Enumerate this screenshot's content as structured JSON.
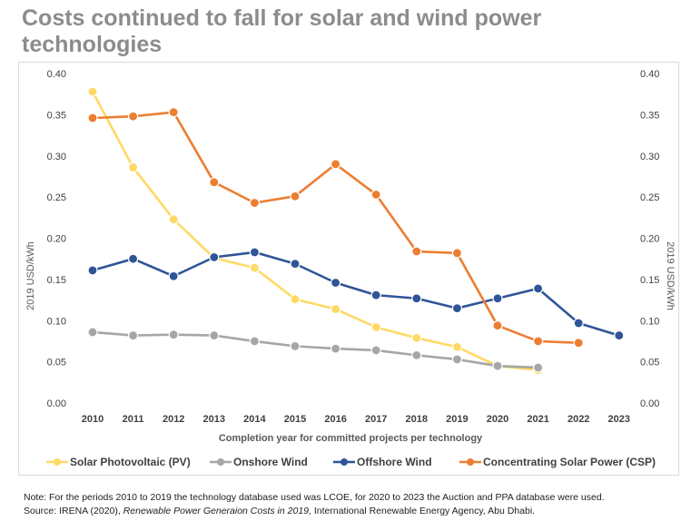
{
  "title": "Costs continued to fall for solar and wind power technologies",
  "note": {
    "line1": "Note: For the periods 2010 to 2019 the technology database used was LCOE, for 2020 to 2023 the Auction and PPA database were used.",
    "source_prefix": "Source: IRENA (2020), ",
    "source_title": "Renewable Power Generaion Costs in 2019,",
    "source_suffix": " International Renewable Energy Agency, Abu Dhabi."
  },
  "chart_data": {
    "type": "line",
    "title": "Costs continued to fall for solar and wind power technologies",
    "xlabel": "Completion year for committed projects per technology",
    "ylabel": "2019 USD/kWh",
    "ylabel_right": "2019 USD/kWh",
    "ylim": [
      0,
      0.4
    ],
    "yticks": [
      "0.00",
      "0.05",
      "0.10",
      "0.15",
      "0.20",
      "0.25",
      "0.30",
      "0.35",
      "0.40"
    ],
    "x": [
      "2010",
      "2011",
      "2012",
      "2013",
      "2014",
      "2015",
      "2016",
      "2017",
      "2018",
      "2019",
      "2020",
      "2021",
      "2022",
      "2023"
    ],
    "grid": false,
    "legend_position": "bottom",
    "series": [
      {
        "name": "Solar Photovoltaic (PV)",
        "color": "#ffd966",
        "values": [
          0.378,
          0.286,
          0.223,
          0.176,
          0.164,
          0.126,
          0.114,
          0.092,
          0.079,
          0.068,
          0.045,
          0.04,
          null,
          null
        ]
      },
      {
        "name": "Onshore Wind",
        "color": "#a6a6a6",
        "values": [
          0.086,
          0.082,
          0.083,
          0.082,
          0.075,
          0.069,
          0.066,
          0.064,
          0.058,
          0.053,
          0.045,
          0.043,
          null,
          null
        ]
      },
      {
        "name": "Offshore Wind",
        "color": "#2f5597",
        "values": [
          0.161,
          0.175,
          0.154,
          0.177,
          0.183,
          0.169,
          0.146,
          0.131,
          0.127,
          0.115,
          0.127,
          0.139,
          0.097,
          0.082
        ]
      },
      {
        "name": "Concentrating Solar Power (CSP)",
        "color": "#ed7d31",
        "values": [
          0.346,
          0.348,
          0.353,
          0.268,
          0.243,
          0.251,
          0.29,
          0.253,
          0.184,
          0.182,
          0.094,
          0.075,
          0.073,
          null
        ]
      }
    ]
  }
}
